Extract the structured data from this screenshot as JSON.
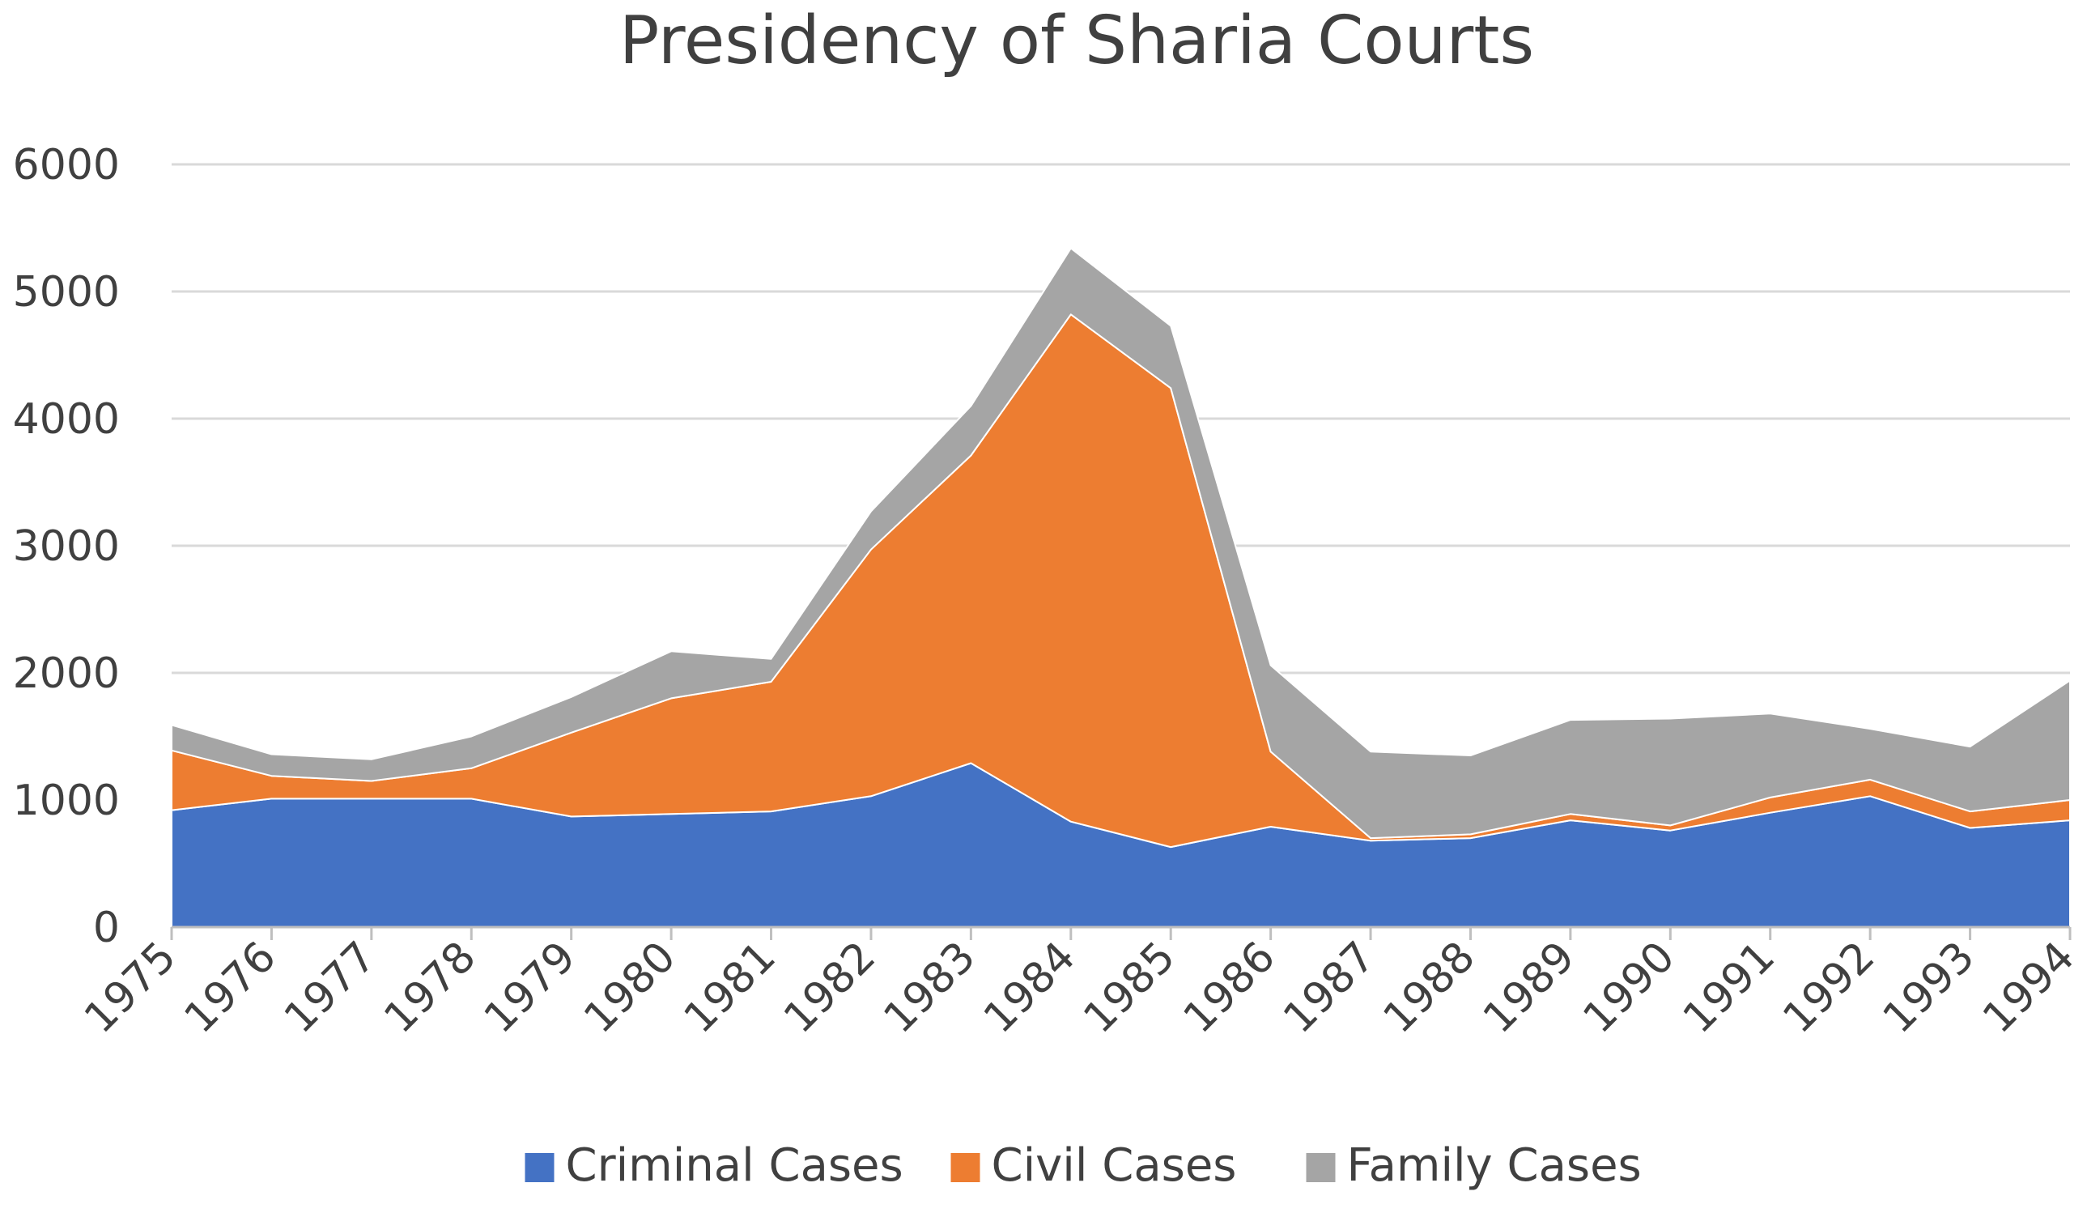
{
  "chart_data": {
    "type": "area",
    "stacked": true,
    "title": "Presidency of Sharia Courts",
    "xlabel": "",
    "ylabel": "",
    "categories": [
      "1975",
      "1976",
      "1977",
      "1978",
      "1979",
      "1980",
      "1981",
      "1982",
      "1983",
      "1984",
      "1985",
      "1986",
      "1987",
      "1988",
      "1989",
      "1990",
      "1991",
      "1992",
      "1993",
      "1994"
    ],
    "ylim": [
      0,
      6000
    ],
    "yticks": [
      "0",
      "1000",
      "2000",
      "3000",
      "4000",
      "5000",
      "6000"
    ],
    "grid": true,
    "legend": "bottom",
    "series": [
      {
        "name": "Criminal Cases",
        "color": "#4472c4",
        "values": [
          920,
          1010,
          1010,
          1010,
          870,
          890,
          910,
          1030,
          1290,
          830,
          630,
          790,
          680,
          700,
          840,
          760,
          900,
          1030,
          780,
          840
        ]
      },
      {
        "name": "Civil Cases",
        "color": "#ed7d31",
        "values": [
          470,
          180,
          140,
          240,
          660,
          910,
          1020,
          1940,
          2420,
          3990,
          3610,
          590,
          20,
          30,
          50,
          40,
          120,
          130,
          130,
          160
        ]
      },
      {
        "name": "Family Cases",
        "color": "#a5a5a5",
        "values": [
          200,
          170,
          170,
          250,
          280,
          370,
          180,
          300,
          390,
          520,
          490,
          680,
          680,
          620,
          740,
          840,
          660,
          400,
          510,
          940
        ]
      }
    ]
  }
}
